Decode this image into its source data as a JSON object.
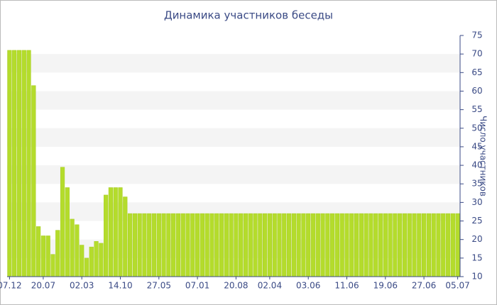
{
  "chart_data": {
    "type": "bar",
    "title": "Динамика участников беседы",
    "y_label": "Число участников",
    "categories": [
      "07.12",
      null,
      null,
      null,
      null,
      null,
      null,
      "20.07",
      null,
      null,
      null,
      null,
      null,
      null,
      null,
      "02.03",
      null,
      null,
      null,
      null,
      null,
      null,
      null,
      "14.10",
      null,
      null,
      null,
      null,
      null,
      null,
      null,
      "27.05",
      null,
      null,
      null,
      null,
      null,
      null,
      null,
      "07.01",
      null,
      null,
      null,
      null,
      null,
      null,
      null,
      "20.08",
      null,
      null,
      null,
      null,
      null,
      null,
      "02.04",
      null,
      null,
      null,
      null,
      null,
      null,
      null,
      "03.06",
      null,
      null,
      null,
      null,
      null,
      null,
      null,
      "11.06",
      null,
      null,
      null,
      null,
      null,
      null,
      null,
      "19.06",
      null,
      null,
      null,
      null,
      null,
      null,
      null,
      "27.06",
      null,
      null,
      null,
      null,
      null,
      null,
      "05.07"
    ],
    "values": [
      71,
      71,
      71,
      71,
      71,
      61.5,
      23.5,
      21,
      21,
      16,
      22.5,
      39.5,
      34,
      25.5,
      24,
      18.5,
      15,
      18,
      19.5,
      19,
      32,
      34,
      34,
      34,
      31.5,
      27,
      27,
      27,
      27,
      27,
      27,
      27,
      27,
      27,
      27,
      27,
      27,
      27,
      27,
      27,
      27,
      27,
      27,
      27,
      27,
      27,
      27,
      27,
      27,
      27,
      27,
      27,
      27,
      27,
      27,
      27,
      27,
      27,
      27,
      27,
      27,
      27,
      27,
      27,
      27,
      27,
      27,
      27,
      27,
      27,
      27,
      27,
      27,
      27,
      27,
      27,
      27,
      27,
      27,
      27,
      27,
      27,
      27,
      27,
      27,
      27,
      27,
      27,
      27,
      27,
      27,
      27,
      27,
      27
    ],
    "color": "#b4dc2c",
    "ylim": [
      10,
      75
    ],
    "yticks": [
      10,
      15,
      20,
      25,
      30,
      35,
      40,
      45,
      50,
      55,
      60,
      65,
      70,
      75
    ],
    "grid": true,
    "y_axis_side": "right"
  }
}
